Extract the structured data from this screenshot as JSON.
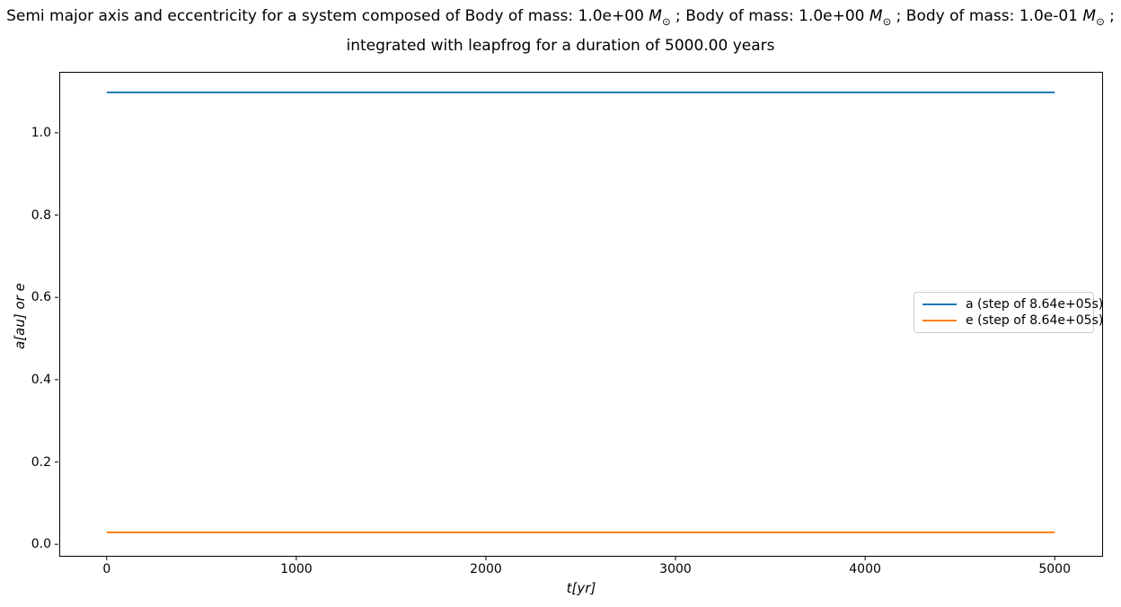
{
  "figure": {
    "background": "#ffffff"
  },
  "title": {
    "plain": "Semi major axis and eccentricity for a system composed of Body of mass: 1.0e+00 M⊙ ; Body of mass: 1.0e+00 M⊙ ; Body of mass: 1.0e-01 M⊙ ; integrated with leapfrog for a duration of 5000.00 years",
    "lines": [
      {
        "segments": [
          {
            "text": "Semi major axis and eccentricity for a system composed of Body of mass: 1.0e+00 ",
            "style": "normal"
          },
          {
            "text": "M",
            "style": "math"
          },
          {
            "text": "⊙",
            "style": "sub"
          },
          {
            "text": " ; Body of mass: 1.0e+00 ",
            "style": "normal"
          },
          {
            "text": "M",
            "style": "math"
          },
          {
            "text": "⊙",
            "style": "sub"
          },
          {
            "text": " ; Body of mass: 1.0e-01 ",
            "style": "normal"
          },
          {
            "text": "M",
            "style": "math"
          },
          {
            "text": "⊙",
            "style": "sub"
          },
          {
            "text": " ;",
            "style": "normal"
          }
        ]
      },
      {
        "segments": [
          {
            "text": "integrated with leapfrog for a duration of 5000.00 years",
            "style": "normal"
          }
        ]
      }
    ]
  },
  "chart_data": {
    "type": "line",
    "title": "Semi major axis and eccentricity for a system composed of Body of mass: 1.0e+00 M⊙ ; Body of mass: 1.0e+00 M⊙ ; Body of mass: 1.0e-01 M⊙ ; integrated with leapfrog for a duration of 5000.00 years",
    "xlabel": "t[yr]",
    "ylabel": "a[au] or e",
    "xlim": [
      -250,
      5250
    ],
    "ylim": [
      -0.028,
      1.148
    ],
    "grid": false,
    "legend_position": "center right",
    "xticks": {
      "values": [
        0,
        1000,
        2000,
        3000,
        4000,
        5000
      ],
      "labels": [
        "0",
        "1000",
        "2000",
        "3000",
        "4000",
        "5000"
      ]
    },
    "yticks": {
      "values": [
        0.0,
        0.2,
        0.4,
        0.6,
        0.8,
        1.0
      ],
      "labels": [
        "0.0",
        "0.2",
        "0.4",
        "0.6",
        "0.8",
        "1.0"
      ]
    },
    "series": [
      {
        "id": "a",
        "name": "a (step of 8.64e+05s)",
        "color": "#1f77b4",
        "x": [
          0,
          5000
        ],
        "y": [
          1.098,
          1.098
        ]
      },
      {
        "id": "e",
        "name": "e (step of 8.64e+05s)",
        "color": "#ff7f0e",
        "x": [
          0,
          5000
        ],
        "y": [
          0.029,
          0.029
        ]
      }
    ]
  }
}
